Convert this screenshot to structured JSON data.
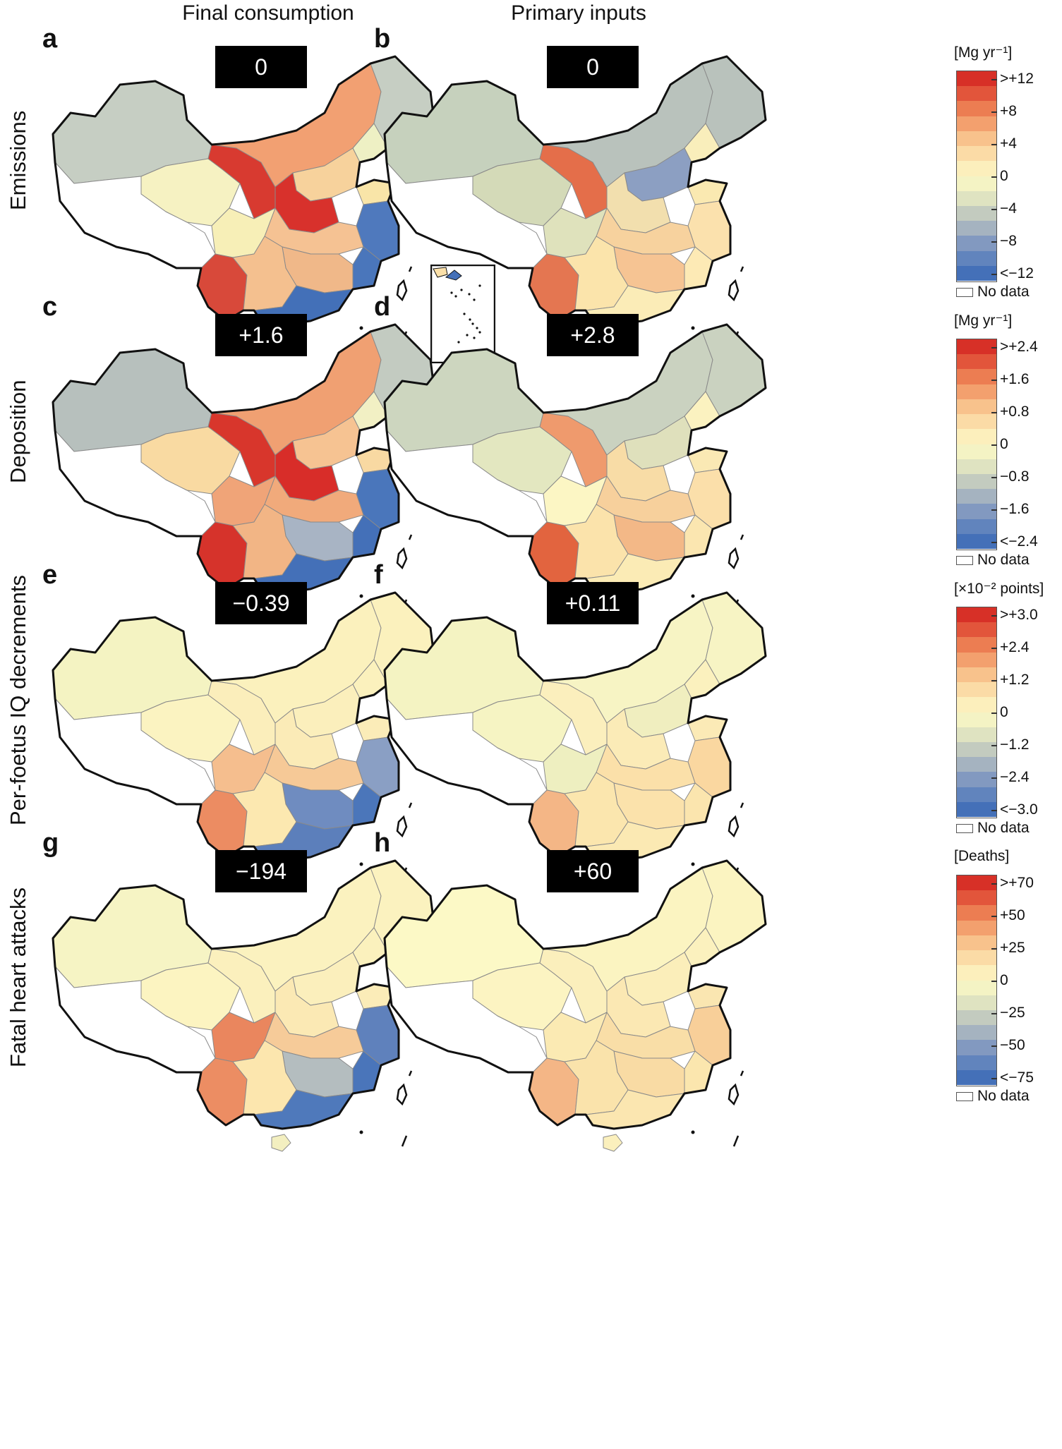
{
  "column_titles": [
    "Final consumption",
    "Primary inputs"
  ],
  "rows": [
    {
      "title": "Emissions",
      "colorbar": {
        "unit": "[Mg yr⁻¹]",
        "labels": [
          ">+12",
          "+8",
          "+4",
          "0",
          "−4",
          "−8",
          "<−12"
        ],
        "no_data": "No data"
      },
      "panels": [
        {
          "letter": "a",
          "total": "0",
          "fills": {
            "xinjiang": "#c6cec3",
            "tibet": "#ffffff",
            "qinghai": "#f6f2c2",
            "gansu": "#d83a30",
            "inner_mongolia": "#f2a072",
            "northeast": "#c6cec3",
            "beijing_tianjin": "#eef0c4",
            "hebei_shanxi": "#f7d29c",
            "shandong": "#f9e5a8",
            "henan_shaanxi": "#d8312c",
            "jiangsu_zhejiang": "#4f79bd",
            "fujian": "#4a76bb",
            "anhui_hubei": "#f5c293",
            "jiangxi_hunan": "#f0b889",
            "sichuan": "#f7efb7",
            "yunnan": "#d8493a",
            "guangxi_guizhou": "#f4c08f",
            "guangdong": "#4370b8",
            "hainan": "#f3efc0"
          },
          "inset": true
        },
        {
          "letter": "b",
          "total": "0",
          "fills": {
            "xinjiang": "#c6d1bd",
            "tibet": "#ffffff",
            "qinghai": "#d4dab8",
            "gansu": "#e46e4a",
            "inner_mongolia": "#b9c2bc",
            "northeast": "#b9c2bc",
            "beijing_tianjin": "#f9eebb",
            "hebei_shanxi": "#8c9fc2",
            "shandong": "#fae9b1",
            "henan_shaanxi": "#f2dfae",
            "jiangsu_zhejiang": "#fbe1ad",
            "fujian": "#fdeab5",
            "anhui_hubei": "#f7d29e",
            "jiangxi_hunan": "#f6c493",
            "sichuan": "#dfe2bc",
            "yunnan": "#e47651",
            "guangxi_guizhou": "#fbe4ab",
            "guangdong": "#fbecb7",
            "hainan": "#fbefbd"
          },
          "inset": false
        }
      ]
    },
    {
      "title": "Deposition",
      "colorbar": {
        "unit": "[Mg yr⁻¹]",
        "labels": [
          ">+2.4",
          "+1.6",
          "+0.8",
          "0",
          "−0.8",
          "−1.6",
          "<−2.4"
        ],
        "no_data": "No data"
      },
      "panels": [
        {
          "letter": "c",
          "total": "+1.6",
          "fills": {
            "xinjiang": "#b7c0bd",
            "tibet": "#ffffff",
            "qinghai": "#f9daa2",
            "gansu": "#d8362c",
            "inner_mongolia": "#f0a072",
            "northeast": "#c3cbc1",
            "beijing_tianjin": "#f2f0c4",
            "hebei_shanxi": "#f6c392",
            "shandong": "#f8d9a2",
            "henan_shaanxi": "#d82d29",
            "jiangsu_zhejiang": "#4a76bb",
            "fujian": "#4470b8",
            "anhui_hubei": "#f1aa7b",
            "jiangxi_hunan": "#a8b4c4",
            "sichuan": "#f0a478",
            "yunnan": "#d6332b",
            "guangxi_guizhou": "#f2b585",
            "guangdong": "#4470b8",
            "hainan": "#f3efc0"
          },
          "inset": false
        },
        {
          "letter": "d",
          "total": "+2.8",
          "fills": {
            "xinjiang": "#cdd6bf",
            "tibet": "#ffffff",
            "qinghai": "#e3e7c0",
            "gansu": "#ef9a6d",
            "inner_mongolia": "#cad2c0",
            "northeast": "#cad2c0",
            "beijing_tianjin": "#fbf2c0",
            "hebei_shanxi": "#dfe0bc",
            "shandong": "#fae9b4",
            "henan_shaanxi": "#f8dca6",
            "jiangsu_zhejiang": "#fbdfaa",
            "fujian": "#fbe6b0",
            "anhui_hubei": "#f7d09c",
            "jiangxi_hunan": "#f3b887",
            "sichuan": "#fcf6c4",
            "yunnan": "#e2643f",
            "guangxi_guizhou": "#fbe3ab",
            "guangdong": "#fbebb5",
            "hainan": "#fbefbd"
          },
          "inset": false
        }
      ]
    },
    {
      "title": "Per-foetus IQ decrements",
      "colorbar": {
        "unit": "[×10⁻² points]",
        "labels": [
          ">+3.0",
          "+2.4",
          "+1.2",
          "0",
          "−1.2",
          "−2.4",
          "<−3.0"
        ],
        "no_data": "No data"
      },
      "panels": [
        {
          "letter": "e",
          "total": "−0.39",
          "fills": {
            "xinjiang": "#f4f3c2",
            "tibet": "#ffffff",
            "qinghai": "#fbf3c1",
            "gansu": "#fbeebb",
            "inner_mongolia": "#fbf1bd",
            "northeast": "#fbf1bd",
            "beijing_tianjin": "#fbf1bd",
            "hebei_shanxi": "#fbefbc",
            "shandong": "#fbecb8",
            "henan_shaanxi": "#fbebb7",
            "jiangsu_zhejiang": "#8a9fc4",
            "fujian": "#4b76ba",
            "anhui_hubei": "#f6c997",
            "jiangxi_hunan": "#6f8cc0",
            "sichuan": "#f5be8e",
            "yunnan": "#ec8c62",
            "guangxi_guizhou": "#fce8b0",
            "guangdong": "#5c7fbb",
            "hainan": "#c3ccbf"
          },
          "inset": false
        },
        {
          "letter": "f",
          "total": "+0.11",
          "fills": {
            "xinjiang": "#f4f3c2",
            "tibet": "#ffffff",
            "qinghai": "#f6f4c3",
            "gansu": "#fbefbd",
            "inner_mongolia": "#f7f4c4",
            "northeast": "#f7f4c4",
            "beijing_tianjin": "#fbf1be",
            "hebei_shanxi": "#f0eebf",
            "shandong": "#fbeab6",
            "henan_shaanxi": "#fbebb7",
            "jiangsu_zhejiang": "#fad7a0",
            "fujian": "#fbe5ae",
            "anhui_hubei": "#fbe0a9",
            "jiangxi_hunan": "#fbe2ab",
            "sichuan": "#eeefc0",
            "yunnan": "#f4b686",
            "guangxi_guizhou": "#fbe6ae",
            "guangdong": "#fbe9b3",
            "hainan": "#fbf0bd"
          },
          "inset": false
        }
      ]
    },
    {
      "title": "Fatal heart attacks",
      "colorbar": {
        "unit": "[Deaths]",
        "labels": [
          ">+70",
          "+50",
          "+25",
          "0",
          "−25",
          "−50",
          "<−75"
        ],
        "no_data": "No data"
      },
      "panels": [
        {
          "letter": "g",
          "total": "−194",
          "fills": {
            "xinjiang": "#f6f4c4",
            "tibet": "#ffffff",
            "qinghai": "#fcf4c1",
            "gansu": "#fbf0bd",
            "inner_mongolia": "#fbf2bf",
            "northeast": "#fbf2bf",
            "beijing_tianjin": "#fbf1bd",
            "hebei_shanxi": "#fbefbc",
            "shandong": "#fbecb8",
            "henan_shaanxi": "#fbe9b4",
            "jiangsu_zhejiang": "#5f81bc",
            "fujian": "#4a75ba",
            "anhui_hubei": "#f6cb99",
            "jiangxi_hunan": "#b4bdbf",
            "sichuan": "#ea865e",
            "yunnan": "#ec8d63",
            "guangxi_guizhou": "#fce6ae",
            "guangdong": "#4f79bb",
            "hainan": "#f3efc0"
          },
          "inset": false
        },
        {
          "letter": "h",
          "total": "+60",
          "fills": {
            "xinjiang": "#fcf9c6",
            "tibet": "#ffffff",
            "qinghai": "#fcf4c2",
            "gansu": "#fbefbc",
            "inner_mongolia": "#fbf4c1",
            "northeast": "#fbf4c1",
            "beijing_tianjin": "#fbf1be",
            "hebei_shanxi": "#fbeeba",
            "shandong": "#fae6b1",
            "henan_shaanxi": "#fbe8b3",
            "jiangsu_zhejiang": "#f8cf99",
            "fujian": "#fbe6ae",
            "anhui_hubei": "#f9dea7",
            "jiangxi_hunan": "#f9dba4",
            "sichuan": "#fbeab3",
            "yunnan": "#f4b686",
            "guangxi_guizhou": "#fae3ab",
            "guangdong": "#fbe6b0",
            "hainan": "#fbf0bd"
          },
          "inset": false
        }
      ]
    }
  ],
  "colorbar_colors": [
    "#d73027",
    "#e2553b",
    "#ec7d52",
    "#f3a06e",
    "#f8c28c",
    "#fbdba6",
    "#fcefbc",
    "#f4f3c4",
    "#dfe3c1",
    "#c3cbbf",
    "#a5b3c0",
    "#8299c0",
    "#6184bd",
    "#4470b8"
  ],
  "map_colors": {
    "outline": "#111111",
    "inner_border": "#8a8a8a",
    "no_data": "#ffffff"
  }
}
